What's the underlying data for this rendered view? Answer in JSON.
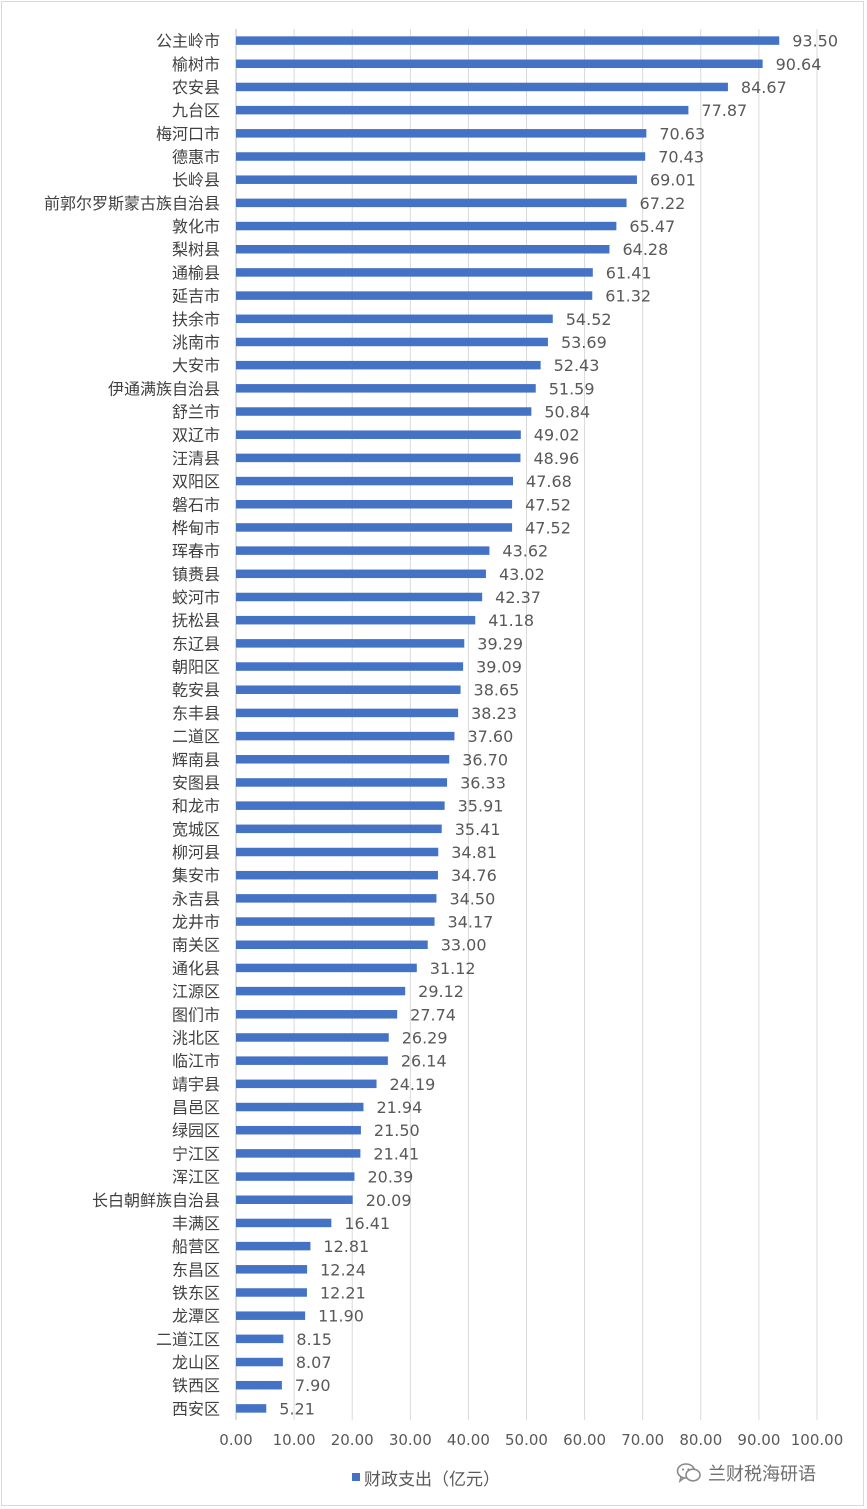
{
  "chart_data": {
    "type": "bar",
    "orientation": "horizontal",
    "series": [
      {
        "name": "财政支出（亿元）",
        "color": "#4472c4"
      }
    ],
    "categories": [
      "公主岭市",
      "榆树市",
      "农安县",
      "九台区",
      "梅河口市",
      "德惠市",
      "长岭县",
      "前郭尔罗斯蒙古族自治县",
      "敦化市",
      "梨树县",
      "通榆县",
      "延吉市",
      "扶余市",
      "洮南市",
      "大安市",
      "伊通满族自治县",
      "舒兰市",
      "双辽市",
      "汪清县",
      "双阳区",
      "磐石市",
      "桦甸市",
      "珲春市",
      "镇赉县",
      "蛟河市",
      "抚松县",
      "东辽县",
      "朝阳区",
      "乾安县",
      "东丰县",
      "二道区",
      "辉南县",
      "安图县",
      "和龙市",
      "宽城区",
      "柳河县",
      "集安市",
      "永吉县",
      "龙井市",
      "南关区",
      "通化县",
      "江源区",
      "图们市",
      "洮北区",
      "临江市",
      "靖宇县",
      "昌邑区",
      "绿园区",
      "宁江区",
      "浑江区",
      "长白朝鲜族自治县",
      "丰满区",
      "船营区",
      "东昌区",
      "铁东区",
      "龙潭区",
      "二道江区",
      "龙山区",
      "铁西区",
      "西安区"
    ],
    "values": [
      93.5,
      90.64,
      84.67,
      77.87,
      70.63,
      70.43,
      69.01,
      67.22,
      65.47,
      64.28,
      61.41,
      61.32,
      54.52,
      53.69,
      52.43,
      51.59,
      50.84,
      49.02,
      48.96,
      47.68,
      47.52,
      47.52,
      43.62,
      43.02,
      42.37,
      41.18,
      39.29,
      39.09,
      38.65,
      38.23,
      37.6,
      36.7,
      36.33,
      35.91,
      35.41,
      34.81,
      34.76,
      34.5,
      34.17,
      33.0,
      31.12,
      29.12,
      27.74,
      26.29,
      26.14,
      24.19,
      21.94,
      21.5,
      21.41,
      20.39,
      20.09,
      16.41,
      12.81,
      12.24,
      12.21,
      11.9,
      8.15,
      8.07,
      7.9,
      5.21
    ],
    "data_labels": [
      "93.50",
      "90.64",
      "84.67",
      "77.87",
      "70.63",
      "70.43",
      "69.01",
      "67.22",
      "65.47",
      "64.28",
      "61.41",
      "61.32",
      "54.52",
      "53.69",
      "52.43",
      "51.59",
      "50.84",
      "49.02",
      "48.96",
      "47.68",
      "47.52",
      "47.52",
      "43.62",
      "43.02",
      "42.37",
      "41.18",
      "39.29",
      "39.09",
      "38.65",
      "38.23",
      "37.60",
      "36.70",
      "36.33",
      "35.91",
      "35.41",
      "34.81",
      "34.76",
      "34.50",
      "34.17",
      "33.00",
      "31.12",
      "29.12",
      "27.74",
      "26.29",
      "26.14",
      "24.19",
      "21.94",
      "21.50",
      "21.41",
      "20.39",
      "20.09",
      "16.41",
      "12.81",
      "12.24",
      "12.21",
      "11.90",
      "8.15",
      "8.07",
      "7.90",
      "5.21"
    ],
    "xlim": [
      0,
      100
    ],
    "xticks": [
      "0.00",
      "10.00",
      "20.00",
      "30.00",
      "40.00",
      "50.00",
      "60.00",
      "70.00",
      "80.00",
      "90.00",
      "100.00"
    ],
    "grid": "vertical",
    "legend": "bottom",
    "title": "",
    "xlabel": "",
    "ylabel": ""
  },
  "legend": {
    "label": "财政支出（亿元）"
  },
  "watermark": {
    "text": "兰财税海研语",
    "icon": "wechat-icon"
  },
  "colors": {
    "bar": "#4472c4",
    "grid": "#d9d9d9",
    "text": "#595959",
    "category_text": "#404040"
  }
}
